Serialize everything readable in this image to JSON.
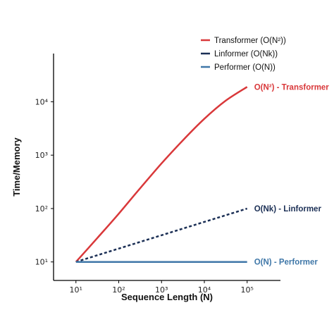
{
  "chart_data": {
    "type": "line",
    "title": "",
    "xlabel": "Sequence Length (N)",
    "ylabel": "Time/Memory",
    "x_scale": "log",
    "y_scale": "log",
    "x_ticks": [
      10,
      100,
      1000,
      10000,
      100000
    ],
    "x_tick_labels": [
      "10¹",
      "10²",
      "10³",
      "10⁴",
      "10⁵"
    ],
    "y_ticks": [
      10,
      100,
      1000,
      10000
    ],
    "y_tick_labels": [
      "10¹",
      "10²",
      "10³",
      "10⁴"
    ],
    "xlim": [
      3,
      600000
    ],
    "ylim": [
      4.5,
      80000
    ],
    "grid": false,
    "legend_position": "top-right",
    "series": [
      {
        "name": "Transformer (O(N²))",
        "color": "#d9383a",
        "style": "solid",
        "x": [
          10,
          31.6,
          100,
          316,
          1000,
          3162,
          10000,
          31623,
          100000
        ],
        "y": [
          10,
          28,
          80,
          240,
          700,
          1900,
          4800,
          10500,
          19000
        ],
        "annotation": "O(N²) - Transformer"
      },
      {
        "name": "Linformer (O(Nk))",
        "color": "#1b2f55",
        "style": "dashed",
        "x": [
          10,
          100000
        ],
        "y": [
          10,
          100
        ],
        "annotation": "O(Nk) - Linformer"
      },
      {
        "name": "Performer (O(N))",
        "color": "#3f77a8",
        "style": "solid",
        "x": [
          10,
          100000
        ],
        "y": [
          10,
          10
        ],
        "annotation": "O(N) - Performer"
      }
    ]
  }
}
